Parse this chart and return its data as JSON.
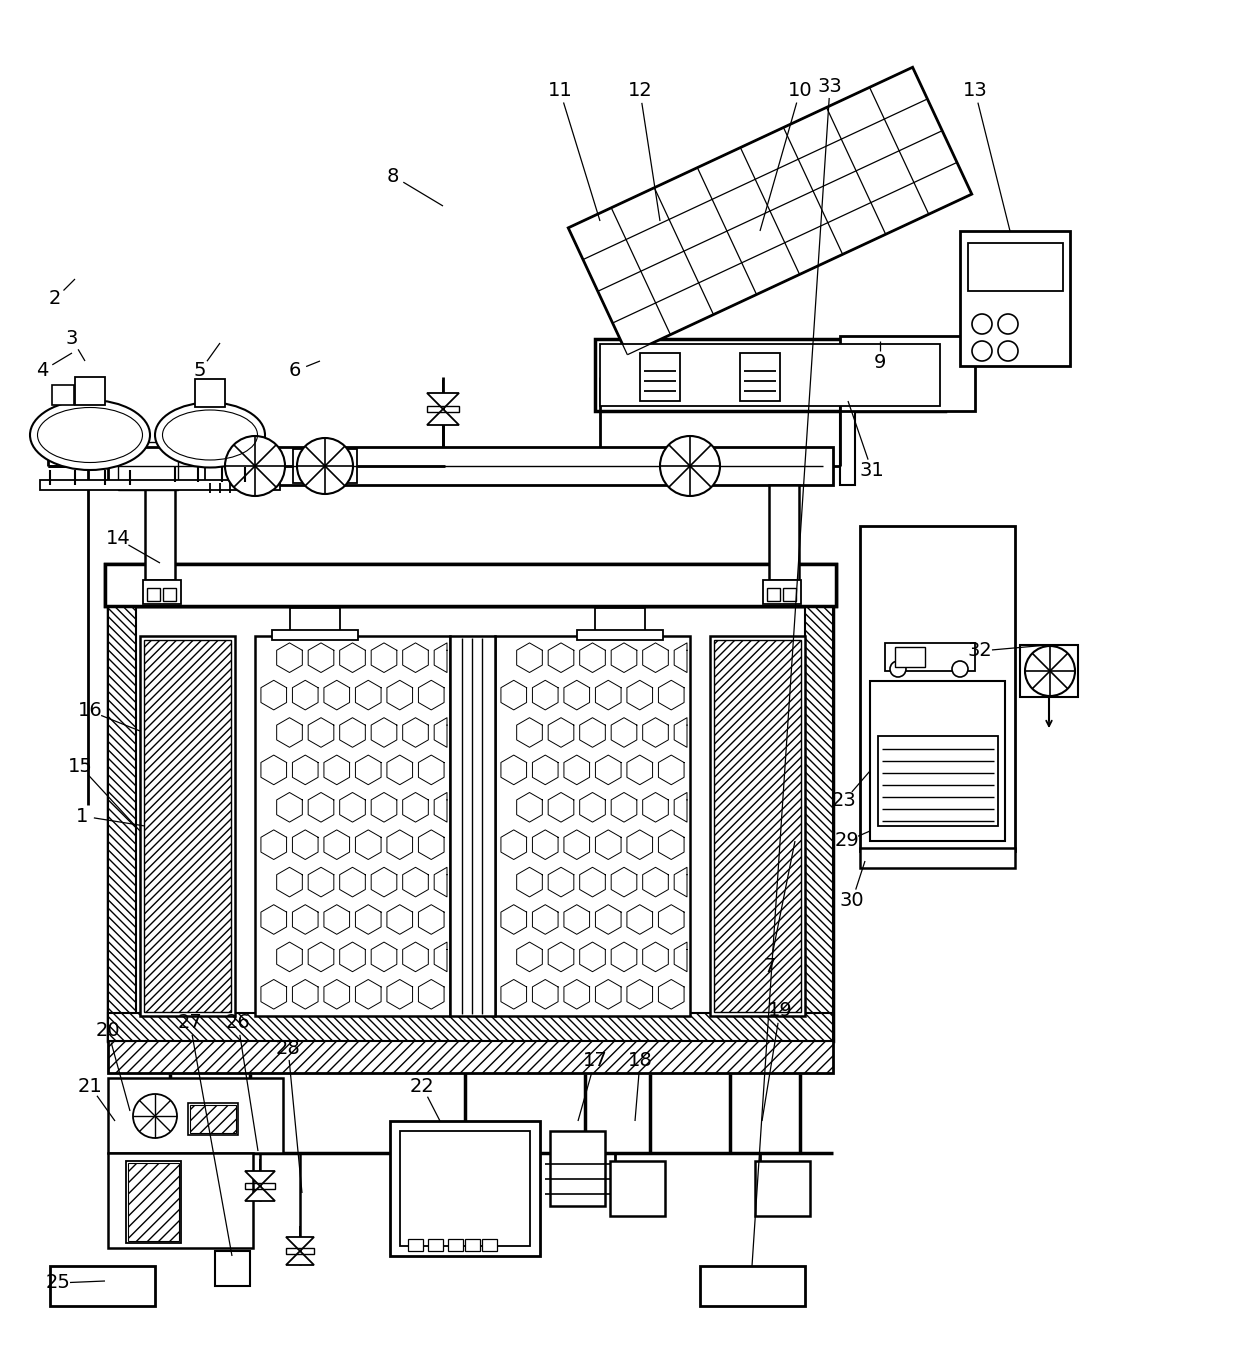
{
  "bg_color": "#ffffff",
  "line_color": "#000000",
  "lw_main": 2.0,
  "lw_med": 1.5,
  "lw_thin": 1.0
}
